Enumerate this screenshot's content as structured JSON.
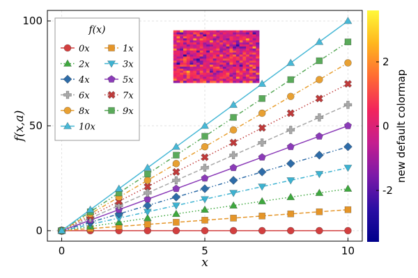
{
  "chart_data": {
    "type": "line",
    "xlabel": "x",
    "ylabel": "f(x,a)",
    "xlim": [
      -0.5,
      10.5
    ],
    "ylim": [
      -5,
      105
    ],
    "xticks": [
      0,
      5,
      10
    ],
    "yticks": [
      0,
      50,
      100
    ],
    "grid": true,
    "legend": {
      "title": "f(x)",
      "placement": "top-left",
      "columns": 2
    },
    "x": [
      0,
      1,
      2,
      3,
      4,
      5,
      6,
      7,
      8,
      9,
      10
    ],
    "series": [
      {
        "name": "0x",
        "a": 0,
        "color": "#d23f3f",
        "marker": "circle",
        "dash": "solid"
      },
      {
        "name": "1x",
        "a": 1,
        "color": "#e59528",
        "marker": "square",
        "dash": "dashed"
      },
      {
        "name": "2x",
        "a": 2,
        "color": "#3ea83e",
        "marker": "triangle-up",
        "dash": "dotted"
      },
      {
        "name": "3x",
        "a": 3,
        "color": "#3cb2d1",
        "marker": "triangle-down",
        "dash": "dashdot"
      },
      {
        "name": "4x",
        "a": 4,
        "color": "#2e6ca8",
        "marker": "diamond",
        "dash": "dashdotdot"
      },
      {
        "name": "5x",
        "a": 5,
        "color": "#8b3bb8",
        "marker": "pentagon",
        "dash": "solid"
      },
      {
        "name": "6x",
        "a": 6,
        "color": "#a8a8a8",
        "marker": "plus",
        "dash": "dashed"
      },
      {
        "name": "7x",
        "a": 7,
        "color": "#c03a3a",
        "marker": "x",
        "dash": "dotted"
      },
      {
        "name": "8x",
        "a": 8,
        "color": "#e8a032",
        "marker": "circle",
        "dash": "dashdot"
      },
      {
        "name": "9x",
        "a": 9,
        "color": "#5aaa5a",
        "marker": "square",
        "dash": "dashdotdot"
      },
      {
        "name": "10x",
        "a": 10,
        "color": "#47b8d6",
        "marker": "triangle-up",
        "dash": "solid"
      }
    ],
    "heatmap_inset": {
      "rows": 26,
      "cols": 26
    },
    "colorbar": {
      "label": "new default colormap",
      "range": [
        -3.6,
        3.6
      ],
      "ticks": [
        -2,
        0,
        2
      ],
      "colormap": [
        "#00008b",
        "#2b0ea4",
        "#7c19a8",
        "#c51e8f",
        "#f2255c",
        "#ff6b33",
        "#ffb61e",
        "#fff838"
      ]
    }
  }
}
